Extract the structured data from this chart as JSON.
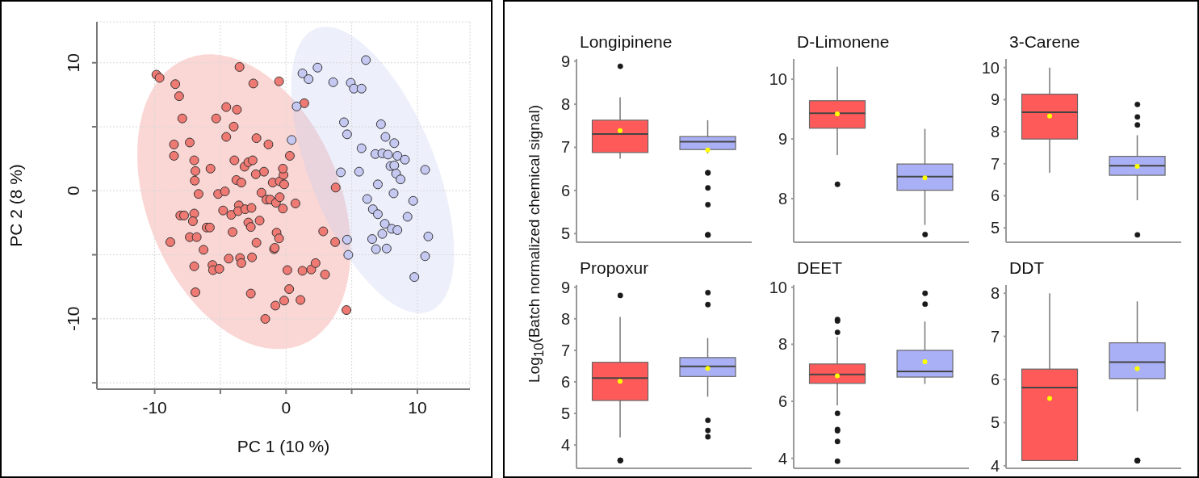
{
  "chart_data": [
    {
      "type": "scatter",
      "xlabel": "PC 1 (10 %)",
      "ylabel": "PC 2 (8 %)",
      "xlim": [
        -14.4,
        14
      ],
      "ylim": [
        -15.5,
        13.2
      ],
      "xticks": [
        -10,
        {
          "value": -5,
          "label": null
        },
        0,
        {
          "value": 5,
          "label": null
        },
        10
      ],
      "yticks": [
        10,
        {
          "value": 5,
          "label": null
        },
        0,
        {
          "value": -5,
          "label": null
        },
        -10,
        {
          "value": -15,
          "label": null
        }
      ],
      "grid": true,
      "marker": "circle",
      "series": [
        {
          "color": "#ee7a73",
          "x": [
            -9.87,
            -9.63,
            -8.43,
            -8.14,
            -7.9,
            -8.53,
            -8.53,
            -7.33,
            -6.99,
            -6.9,
            -6.95,
            -6.66,
            -5.75,
            -5.32,
            -4.55,
            -3.74,
            -3.98,
            -4.55,
            -3.54,
            -2.49,
            -0.53,
            1.39,
            -2.25,
            -1.34,
            -3.93,
            -3.16,
            -2.87,
            -2.54,
            -1.68,
            -2.3,
            -3.78,
            -3.4,
            -5.17,
            -4.65,
            -4.79,
            -4.17,
            -3.59,
            -3.64,
            -3.11,
            -2.63,
            -1.87,
            -1.49,
            -1.2,
            -0.77,
            -0.48,
            -0.24,
            0.72,
            -1.01,
            -0.48,
            -0.14,
            -0.19,
            -0.24,
            0.29,
            3.78,
            -8.05,
            -7.76,
            -6.99,
            -7.09,
            -6.04,
            -5.8,
            -7.33,
            -6.8,
            -8.81,
            -6.28,
            -6.99,
            -5.6,
            -5.56,
            -5.08,
            -4.36,
            -3.5,
            -3.4,
            -2.59,
            -4.07,
            -2.87,
            -2.68,
            -2.01,
            -2.25,
            -0.72,
            -0.53,
            -0.91,
            -0.86,
            0.1,
            1.25,
            1.92,
            2.25,
            2.97,
            2.83,
            3.74,
            0.24,
            1.1,
            -0.14,
            -0.81,
            -1.58,
            -2.68,
            -6.9,
            4.6
          ],
          "values": [
            9.07,
            8.82,
            8.33,
            7.39,
            5.65,
            3.62,
            2.73,
            3.77,
            2.38,
            1.54,
            0.79,
            -0.25,
            1.73,
            5.65,
            6.54,
            6.34,
            5.01,
            4.21,
            9.67,
            8.38,
            8.55,
            6.84,
            4.11,
            3.62,
            2.38,
            1.88,
            2.23,
            2.38,
            1.49,
            1.29,
            0.84,
            0.64,
            -0.25,
            -0.05,
            -1.54,
            -1.88,
            -1.14,
            -1.59,
            -1.44,
            -1.34,
            -0.15,
            -0.69,
            -0.69,
            -0.94,
            -0.5,
            -1.39,
            -0.99,
            0.64,
            0.74,
            0.5,
            1.24,
            1.73,
            2.73,
            0.25,
            -1.93,
            -1.93,
            -1.78,
            -2.38,
            -2.87,
            -2.87,
            -3.62,
            -3.62,
            -4.01,
            -4.61,
            -5.9,
            -5.8,
            -6.2,
            -6.1,
            -5.3,
            -5.25,
            -5.65,
            -5.2,
            -3.22,
            -2.48,
            -2.83,
            -2.33,
            -4.06,
            -3.27,
            -3.72,
            -4.56,
            -4.46,
            -6.2,
            -6.25,
            -6.15,
            -5.65,
            -6.54,
            -3.17,
            -4.01,
            -7.68,
            -8.53,
            -8.58,
            -8.97,
            -10.01,
            -8.03,
            -7.93,
            -9.32
          ]
        },
        {
          "color": "#c5c9f2",
          "x": [
            1.25,
            1.72,
            2.4,
            3.59,
            4.93,
            5.17,
            5.75,
            6.08,
            0.81,
            0.43,
            4.41,
            4.65,
            5.75,
            7.23,
            7.57,
            8.24,
            6.8,
            7.33,
            7.76,
            8.48,
            9.05,
            7.95,
            8.24,
            8.38,
            8.72,
            10.59,
            4.17,
            5.56,
            6.99,
            8.19,
            9.68,
            6.18,
            6.61,
            6.99,
            9.25,
            7.52,
            8.05,
            8.48,
            7.33,
            6.56,
            4.65,
            10.83,
            6.85,
            7.66,
            4.74,
            10.59,
            9.77
          ],
          "values": [
            9.17,
            8.72,
            9.62,
            8.48,
            8.43,
            7.98,
            7.98,
            10.21,
            6.59,
            3.97,
            5.35,
            4.41,
            3.32,
            5.2,
            4.21,
            3.72,
            2.87,
            2.92,
            2.83,
            2.73,
            2.43,
            1.93,
            1.98,
            1.34,
            0.89,
            1.64,
            1.44,
            1.49,
            0.5,
            -0.2,
            -0.79,
            -0.64,
            -1.44,
            -1.83,
            -2.03,
            -2.58,
            -2.97,
            -3.07,
            -3.37,
            -3.77,
            -3.82,
            -3.57,
            -4.56,
            -4.51,
            -5.01,
            -5.11,
            -6.74
          ]
        }
      ]
    },
    {
      "type": "box",
      "title": "Longipinene",
      "ylabel": "Log$_{10}$(Batch normalized chemical signal)",
      "categories": [
        null,
        null
      ],
      "colors": [
        "#ff5a5a",
        "#aab0f5"
      ],
      "ylim": [
        4.8,
        9.05
      ],
      "yticks": [
        5,
        6,
        7,
        8,
        9
      ],
      "tick_labels": "y",
      "boxes": [
        {
          "low": 6.74,
          "q1": 6.88,
          "median": 7.31,
          "q3": 7.63,
          "high": 8.16,
          "mean": 7.39,
          "outliers": [
            8.88
          ]
        },
        {
          "low": 6.86,
          "q1": 6.95,
          "median": 7.13,
          "q3": 7.25,
          "high": 7.63,
          "mean": 6.94,
          "outliers": [
            6.41,
            6.41,
            6.06,
            5.67,
            4.97,
            4.97,
            4.97
          ]
        }
      ]
    },
    {
      "type": "box",
      "title": "D-Limonene",
      "categories": [
        null,
        null
      ],
      "colors": [
        "#ff5a5a",
        "#aab0f5"
      ],
      "ylim": [
        7.27,
        10.34
      ],
      "yticks": [
        8,
        9,
        10
      ],
      "tick_labels": "y",
      "boxes": [
        {
          "low": 8.73,
          "q1": 9.18,
          "median": 9.43,
          "q3": 9.64,
          "high": 10.21,
          "mean": 9.42,
          "outliers": [
            8.24
          ]
        },
        {
          "low": 7.56,
          "q1": 8.14,
          "median": 8.37,
          "q3": 8.58,
          "high": 9.17,
          "mean": 8.35,
          "outliers": [
            7.4
          ]
        }
      ]
    },
    {
      "type": "box",
      "title": "3-Carene",
      "categories": [
        null,
        null
      ],
      "colors": [
        "#ff5a5a",
        "#aab0f5"
      ],
      "ylim": [
        4.55,
        10.27
      ],
      "yticks": [
        5,
        6,
        7,
        8,
        9,
        10
      ],
      "tick_labels": "y",
      "boxes": [
        {
          "low": 6.72,
          "q1": 7.77,
          "median": 8.61,
          "q3": 9.17,
          "high": 10,
          "mean": 8.49
        },
        {
          "low": 5.86,
          "q1": 6.64,
          "median": 6.94,
          "q3": 7.23,
          "high": 7.89,
          "mean": 6.92,
          "outliers": [
            8.85,
            8.46,
            8.21,
            4.78
          ]
        }
      ]
    },
    {
      "type": "box",
      "title": "Propoxur",
      "categories": [
        null,
        null
      ],
      "colors": [
        "#ff5a5a",
        "#aab0f5"
      ],
      "ylim": [
        3.26,
        9.07
      ],
      "yticks": [
        4,
        5,
        6,
        7,
        8,
        9
      ],
      "tick_labels": "y",
      "boxes": [
        {
          "low": 4.24,
          "q1": 5.41,
          "median": 6.12,
          "q3": 6.62,
          "high": 8.06,
          "mean": 6.02,
          "outliers": [
            8.74,
            3.51,
            3.51,
            3.51
          ]
        },
        {
          "low": 5.53,
          "q1": 6.17,
          "median": 6.49,
          "q3": 6.77,
          "high": 7.39,
          "mean": 6.43,
          "outliers": [
            8.83,
            8.45,
            4.78,
            4.46,
            4.26
          ]
        }
      ]
    },
    {
      "type": "box",
      "title": "DEET",
      "categories": [
        null,
        null
      ],
      "colors": [
        "#ff5a5a",
        "#aab0f5"
      ],
      "ylim": [
        3.65,
        10.08
      ],
      "yticks": [
        4,
        6,
        8,
        10
      ],
      "tick_labels": "y",
      "boxes": [
        {
          "low": 5.86,
          "q1": 6.63,
          "median": 6.94,
          "q3": 7.31,
          "high": 8.26,
          "mean": 6.89,
          "outliers": [
            8.87,
            8.82,
            8.42,
            5.58,
            5.01,
            4.97,
            4.59,
            3.9
          ]
        },
        {
          "low": 6.61,
          "q1": 6.85,
          "median": 7.05,
          "q3": 7.79,
          "high": 8.8,
          "mean": 7.39,
          "outliers": [
            9.79,
            9.41
          ]
        }
      ]
    },
    {
      "type": "box",
      "title": "DDT",
      "categories": [
        null,
        null
      ],
      "colors": [
        "#ff5a5a",
        "#aab0f5"
      ],
      "ylim": [
        3.94,
        8.19
      ],
      "yticks": [
        4,
        5,
        6,
        7,
        8
      ],
      "tick_labels": "y",
      "boxes": [
        {
          "low": 4.12,
          "q1": 4.12,
          "median": 5.81,
          "q3": 6.24,
          "high": 8,
          "mean": 5.56
        },
        {
          "low": 5.26,
          "q1": 6.02,
          "median": 6.4,
          "q3": 6.85,
          "high": 7.81,
          "mean": 6.25,
          "outliers": [
            4.12,
            4.12,
            4.12,
            4.12
          ]
        }
      ]
    }
  ]
}
